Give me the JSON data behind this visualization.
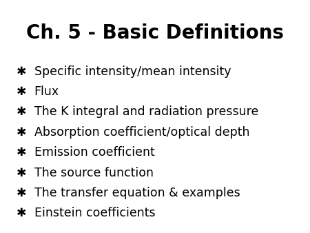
{
  "title": "Ch. 5 - Basic Definitions",
  "title_fontsize": 20,
  "background_color": "#ffffff",
  "text_color": "#000000",
  "bullet_char": "✱",
  "items": [
    "Specific intensity/mean intensity",
    "Flux",
    "The K integral and radiation pressure",
    "Absorption coefficient/optical depth",
    "Emission coefficient",
    "The source function",
    "The transfer equation & examples",
    "Einstein coefficients"
  ],
  "item_fontsize": 12.5,
  "figsize": [
    4.5,
    3.38
  ],
  "dpi": 100
}
